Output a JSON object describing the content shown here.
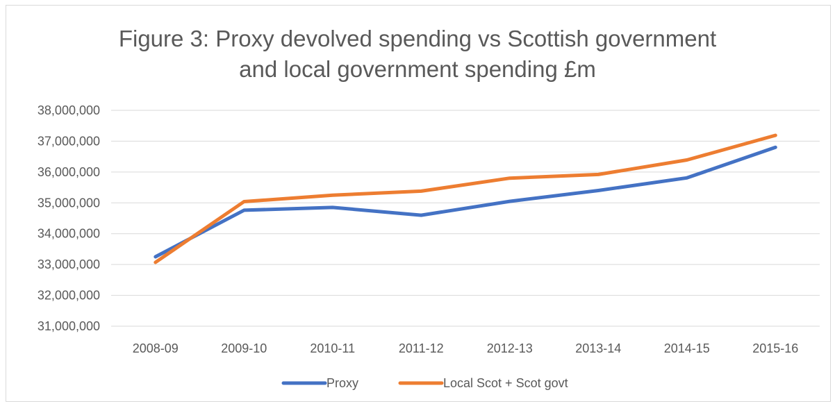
{
  "chart_data": {
    "type": "line",
    "title_lines": [
      "Figure 3: Proxy devolved spending vs Scottish government",
      "and local government spending £m"
    ],
    "categories": [
      "2008-09",
      "2009-10",
      "2010-11",
      "2011-12",
      "2012-13",
      "2013-14",
      "2014-15",
      "2015-16"
    ],
    "ylim": [
      31000000,
      38000000
    ],
    "yticks": [
      31000000,
      32000000,
      33000000,
      34000000,
      35000000,
      36000000,
      37000000,
      38000000
    ],
    "ytick_labels": [
      "31,000,000",
      "32,000,000",
      "33,000,000",
      "34,000,000",
      "35,000,000",
      "36,000,000",
      "37,000,000",
      "38,000,000"
    ],
    "grid": true,
    "legend_position": "bottom",
    "series": [
      {
        "name": "Proxy",
        "color": "#4472c4",
        "values": [
          33250000,
          34760000,
          34850000,
          34600000,
          35050000,
          35400000,
          35810000,
          36800000
        ]
      },
      {
        "name": "Local Scot + Scot govt",
        "color": "#ed7d31",
        "values": [
          33070000,
          35040000,
          35250000,
          35380000,
          35800000,
          35920000,
          36390000,
          37190000
        ]
      }
    ]
  }
}
